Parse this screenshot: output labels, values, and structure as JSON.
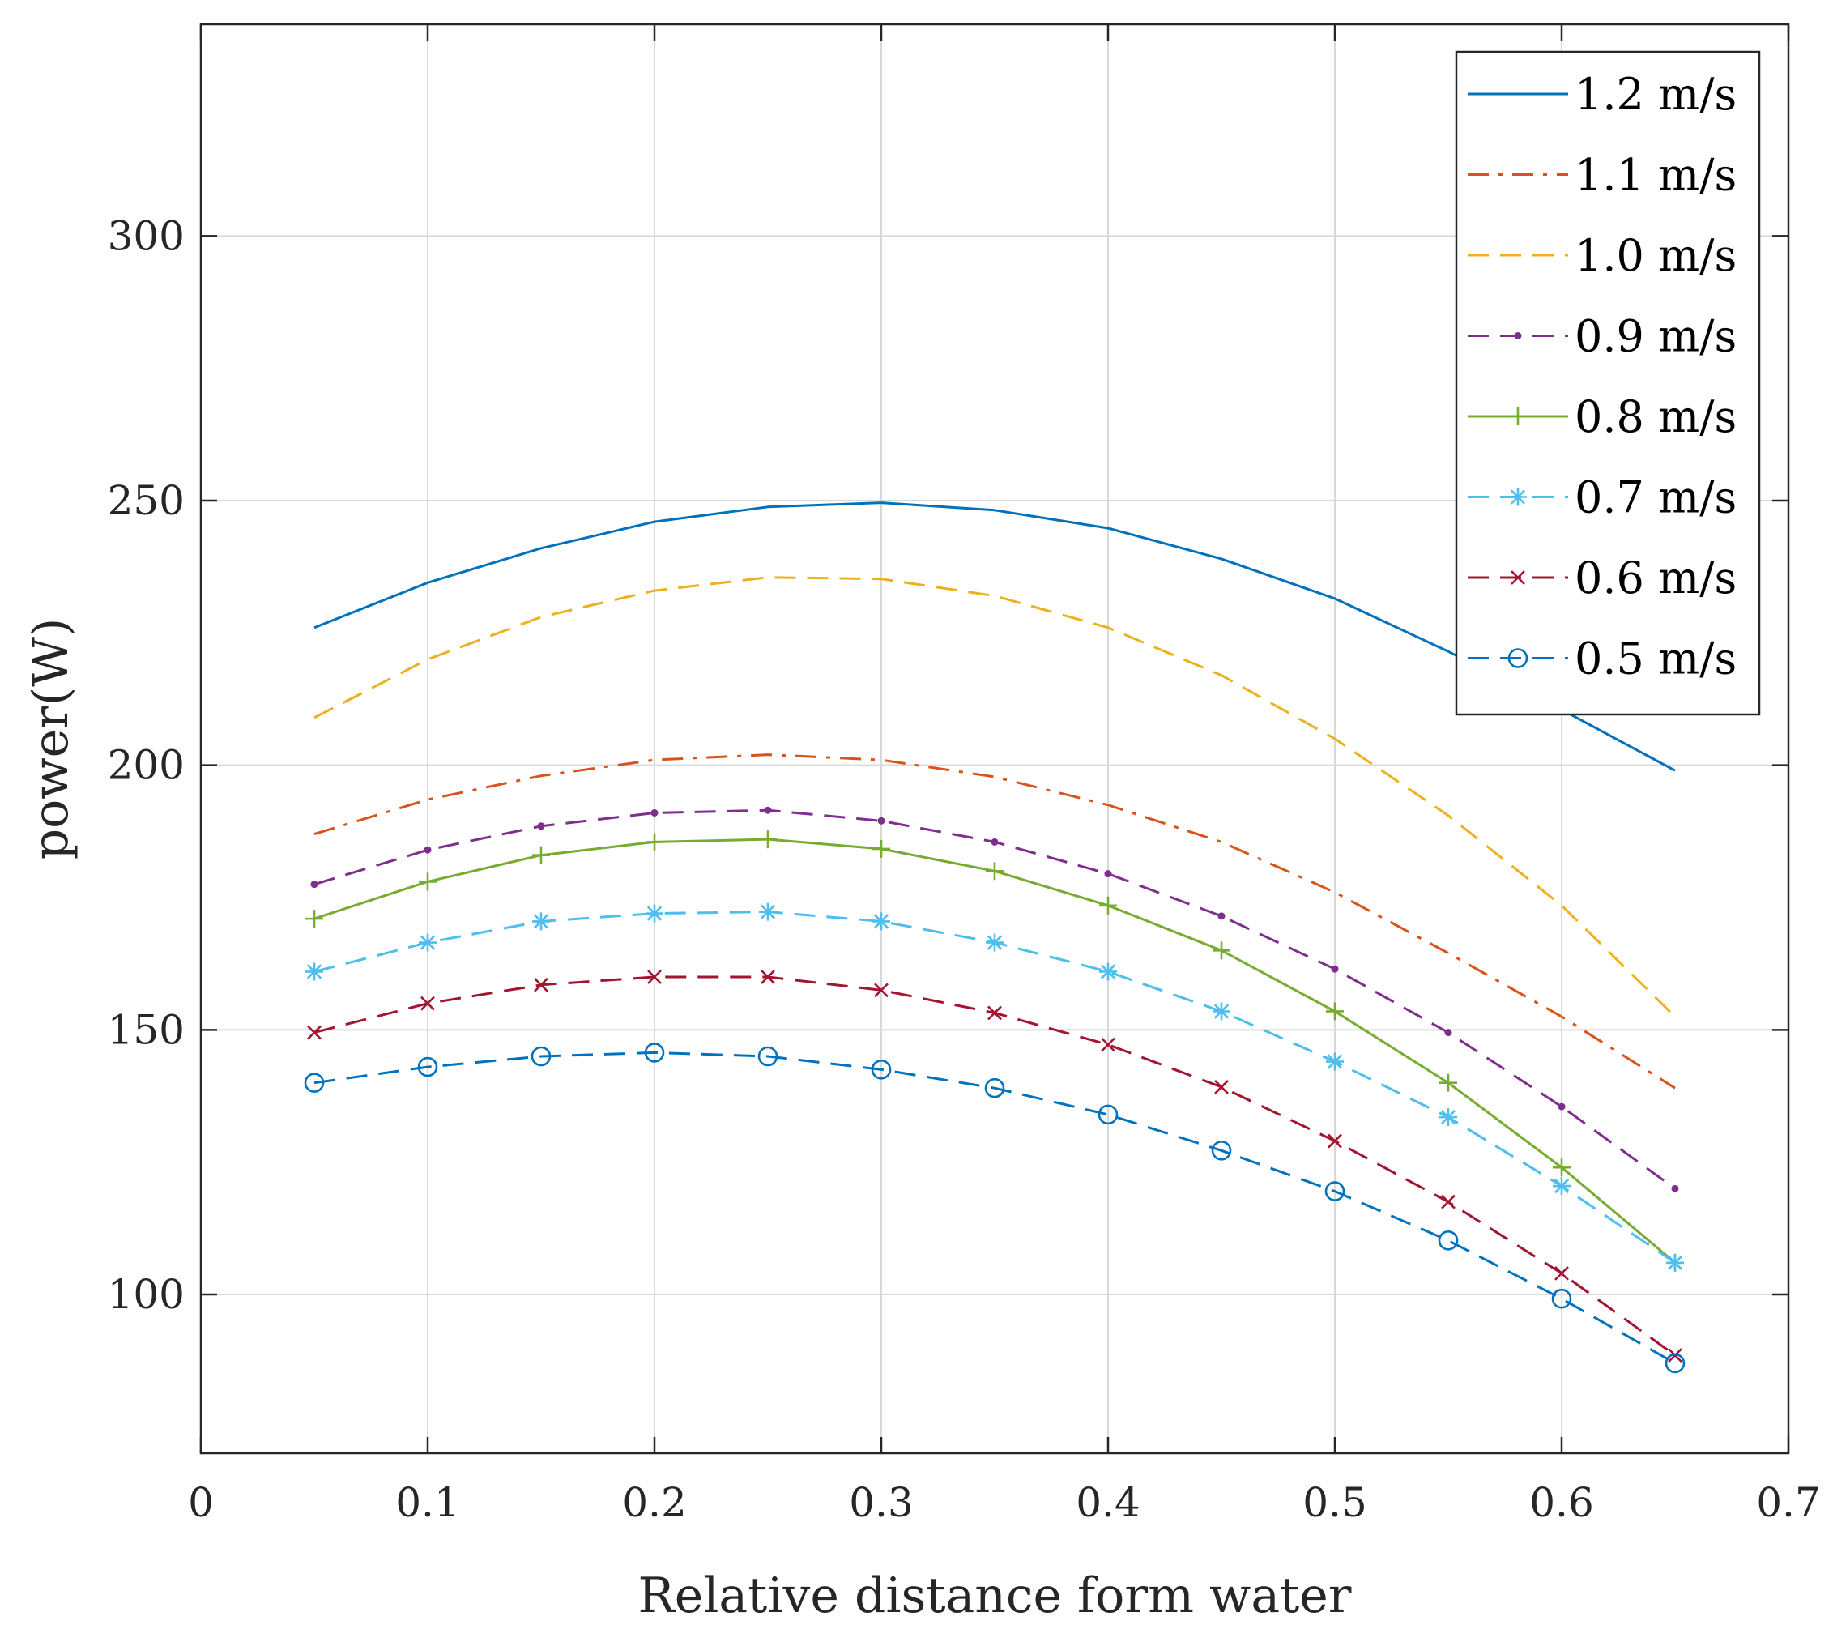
{
  "chart_data": {
    "type": "line",
    "xlabel": "Relative distance form water",
    "ylabel": "power(W)",
    "xlim": [
      0,
      0.7
    ],
    "ylim": [
      70,
      340
    ],
    "xticks": [
      0,
      0.1,
      0.2,
      0.3,
      0.4,
      0.5,
      0.6,
      0.7
    ],
    "xtick_labels": [
      "0",
      "0.1",
      "0.2",
      "0.3",
      "0.4",
      "0.5",
      "0.6",
      "0.7"
    ],
    "yticks": [
      100,
      150,
      200,
      250,
      300
    ],
    "ytick_labels": [
      "100",
      "150",
      "200",
      "250",
      "300"
    ],
    "grid": true,
    "legend_position": "top-right",
    "x": [
      0.05,
      0.1,
      0.15,
      0.2,
      0.25,
      0.3,
      0.35,
      0.4,
      0.45,
      0.5,
      0.55,
      0.6,
      0.65
    ],
    "series": [
      {
        "name": "1.2 m/s",
        "color": "#0072bd",
        "dash": "solid",
        "marker": "none",
        "values": [
          226,
          234.5,
          241,
          246,
          248.8,
          249.6,
          248.2,
          244.8,
          239,
          231.5,
          221.5,
          210.5,
          199
        ]
      },
      {
        "name": "1.1 m/s",
        "color": "#d95319",
        "dash": "dashdot",
        "marker": "none",
        "values": [
          187,
          193.5,
          198,
          201,
          202,
          201,
          197.8,
          192.5,
          185.5,
          176,
          164.5,
          152.5,
          139
        ]
      },
      {
        "name": "1.0 m/s",
        "color": "#edb120",
        "dash": "dashed",
        "marker": "none",
        "values": [
          209,
          220,
          228,
          233,
          235.5,
          235.2,
          232,
          226,
          217,
          205,
          190.5,
          173.5,
          152.5
        ]
      },
      {
        "name": "0.9 m/s",
        "color": "#7e2f8e",
        "dash": "dashed",
        "marker": "dot",
        "values": [
          177.5,
          184,
          188.5,
          191,
          191.5,
          189.5,
          185.5,
          179.5,
          171.5,
          161.5,
          149.5,
          135.5,
          120
        ]
      },
      {
        "name": "0.8 m/s",
        "color": "#77ac30",
        "dash": "solid",
        "marker": "plus",
        "values": [
          171,
          178,
          183,
          185.5,
          186,
          184.2,
          180,
          173.5,
          165,
          153.5,
          140,
          124,
          106
        ]
      },
      {
        "name": "0.7 m/s",
        "color": "#4dbeee",
        "dash": "dashed",
        "marker": "asterisk",
        "values": [
          161,
          166.5,
          170.5,
          172,
          172.3,
          170.5,
          166.5,
          161,
          153.5,
          144,
          133.5,
          120.5,
          106
        ]
      },
      {
        "name": "0.6 m/s",
        "color": "#a2142f",
        "dash": "dashed",
        "marker": "cross",
        "values": [
          149.5,
          155,
          158.5,
          160,
          160,
          157.5,
          153.2,
          147.2,
          139.2,
          129,
          117.5,
          104,
          88.5
        ]
      },
      {
        "name": "0.5 m/s",
        "color": "#0072bd",
        "dash": "dashed",
        "marker": "circle",
        "values": [
          140,
          143,
          145,
          145.7,
          145,
          142.5,
          139,
          134,
          127.2,
          119.5,
          110.2,
          99.2,
          87
        ]
      }
    ]
  }
}
